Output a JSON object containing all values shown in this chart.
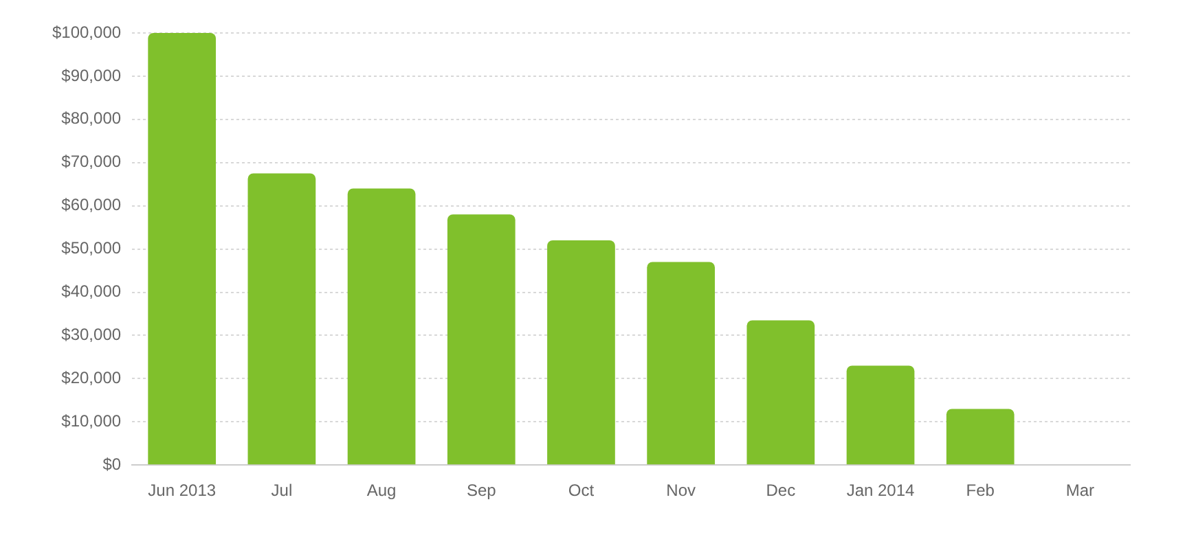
{
  "chart_data": {
    "type": "bar",
    "categories": [
      "Jun 2013",
      "Jul",
      "Aug",
      "Sep",
      "Oct",
      "Nov",
      "Dec",
      "Jan 2014",
      "Feb",
      "Mar"
    ],
    "values": [
      100000,
      67500,
      64000,
      58000,
      52000,
      47000,
      33500,
      23000,
      13000,
      0
    ],
    "color": "#80c02c",
    "ylim": [
      0,
      100000
    ],
    "yticks": [
      {
        "value": 0,
        "label": "$0"
      },
      {
        "value": 10000,
        "label": "$10,000"
      },
      {
        "value": 20000,
        "label": "$20,000"
      },
      {
        "value": 30000,
        "label": "$30,000"
      },
      {
        "value": 40000,
        "label": "$40,000"
      },
      {
        "value": 50000,
        "label": "$50,000"
      },
      {
        "value": 60000,
        "label": "$60,000"
      },
      {
        "value": 70000,
        "label": "$70,000"
      },
      {
        "value": 80000,
        "label": "$80,000"
      },
      {
        "value": 90000,
        "label": "$90,000"
      },
      {
        "value": 100000,
        "label": "$100,000"
      }
    ],
    "grid": "y",
    "legend": false
  }
}
